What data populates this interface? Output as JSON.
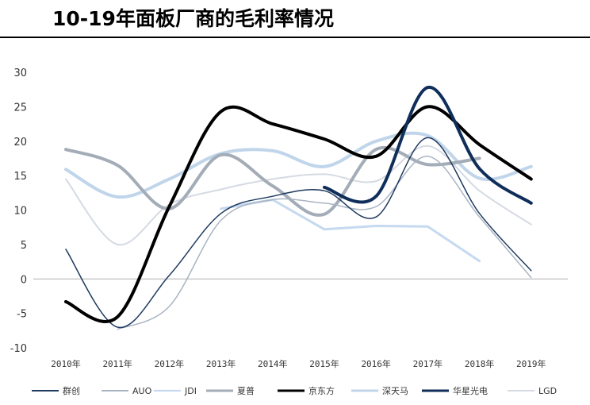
{
  "chart_data": {
    "type": "line",
    "title": "10-19年面板厂商的毛利率情况",
    "xlabel": "",
    "ylabel": "",
    "x": [
      "2010年",
      "2011年",
      "2012年",
      "2013年",
      "2014年",
      "2015年",
      "2016年",
      "2017年",
      "2018年",
      "2019年"
    ],
    "ylim": [
      -10,
      30
    ],
    "yticks": [
      30,
      25,
      20,
      15,
      10,
      5,
      0,
      -5,
      -10
    ],
    "grid": false,
    "legend_position": "bottom",
    "series": [
      {
        "name": "群创",
        "color": "#1f3a5f",
        "width": 1.5,
        "values": [
          4.3,
          -7,
          0.5,
          9.5,
          12,
          12.8,
          9,
          20.5,
          9.5,
          1.2
        ]
      },
      {
        "name": "AUO",
        "color": "#a9b4c2",
        "width": 1.5,
        "values": [
          null,
          -7.3,
          -4,
          8.5,
          11.5,
          11,
          10.5,
          17.8,
          9,
          0.2
        ]
      },
      {
        "name": "JDI",
        "color": "#c5d9ef",
        "width": 3,
        "values": [
          null,
          null,
          null,
          10.2,
          11.5,
          7.2,
          7.7,
          7.6,
          2.6,
          null
        ]
      },
      {
        "name": "夏普",
        "color": "#a3acb7",
        "width": 4,
        "values": [
          18.8,
          16.5,
          10.2,
          18,
          13.5,
          9.4,
          18.8,
          16.6,
          17.5,
          null
        ]
      },
      {
        "name": "京东方",
        "color": "#000000",
        "width": 4,
        "values": [
          -3.3,
          -5.5,
          10.5,
          24.3,
          22.5,
          20.3,
          17.8,
          25,
          19.5,
          14.5
        ]
      },
      {
        "name": "深天马",
        "color": "#c0d5ea",
        "width": 4,
        "values": [
          15.9,
          11.9,
          14.5,
          18.2,
          18.6,
          16.3,
          20,
          20.8,
          14.6,
          16.3
        ]
      },
      {
        "name": "华星光电",
        "color": "#102e5a",
        "width": 4,
        "values": [
          null,
          null,
          null,
          null,
          null,
          13.3,
          12,
          27.8,
          16,
          11
        ]
      },
      {
        "name": "LGD",
        "color": "#d5dae3",
        "width": 2,
        "values": [
          14.5,
          5,
          10.8,
          13,
          14.5,
          15.2,
          14.2,
          19.3,
          12.8,
          7.9
        ]
      }
    ]
  }
}
